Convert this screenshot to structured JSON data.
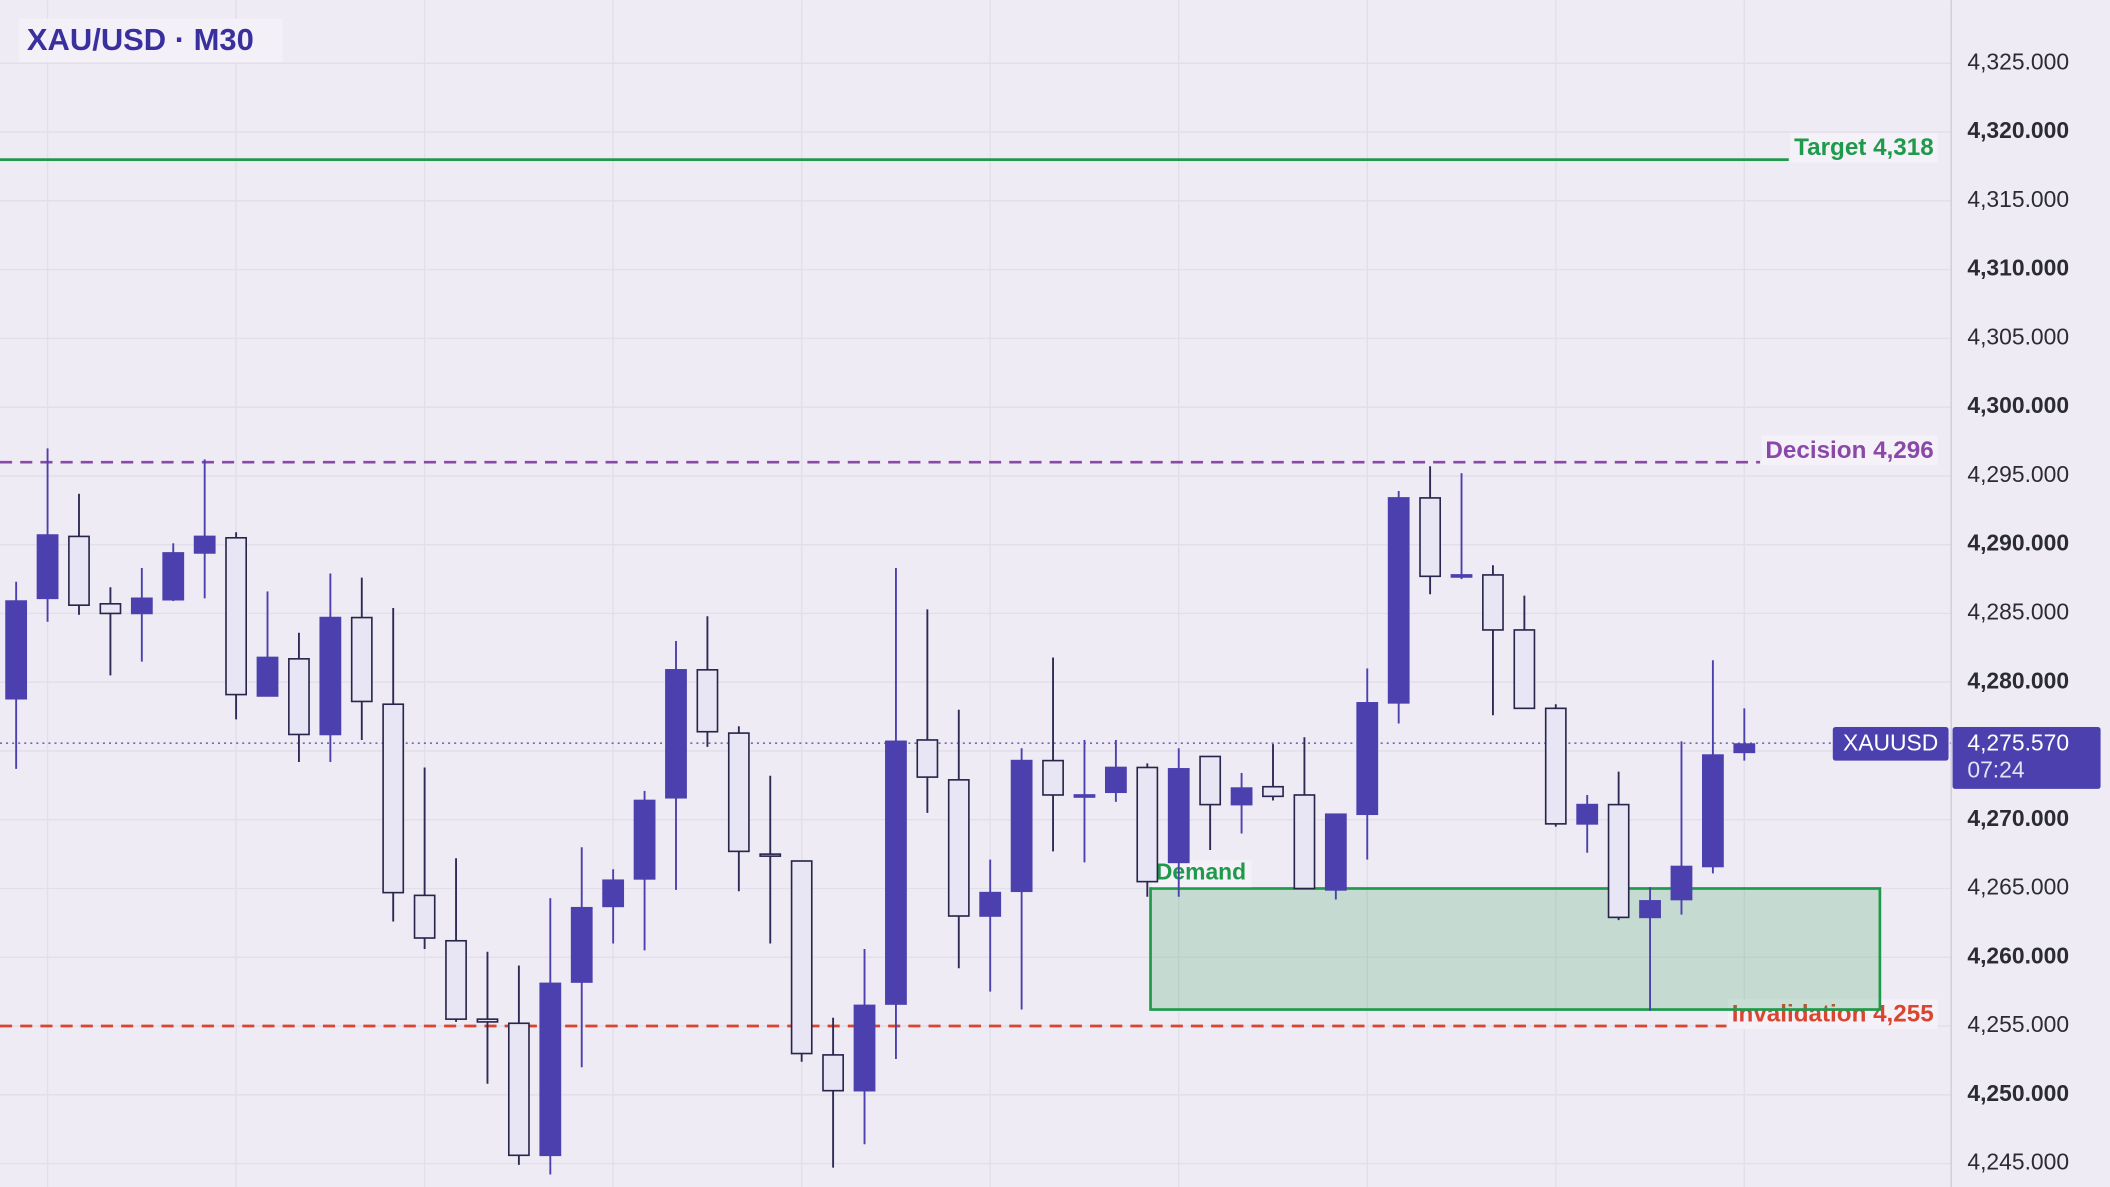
{
  "chart_data": {
    "type": "candlestick",
    "title": "XAU/USD · M30",
    "up_color": "#4b40ae",
    "down_color": "#e8e5f4",
    "open": [
      4278.8,
      4286.1,
      4290.6,
      4285.7,
      4285.0,
      4286.0,
      4289.4,
      4290.5,
      4279.0,
      4281.7,
      4276.2,
      4284.7,
      4278.4,
      4264.5,
      4261.2,
      4255.5,
      4255.2,
      4245.6,
      4258.2,
      4263.7,
      4265.7,
      4271.6,
      4280.9,
      4276.3,
      4267.5,
      4267.0,
      4252.9,
      4250.3,
      4256.6,
      4275.8,
      4272.9,
      4263.0,
      4264.8,
      4274.3,
      4271.7,
      4272.0,
      4273.8,
      4266.9,
      4274.6,
      4271.1,
      4272.4,
      4271.8,
      4264.9,
      4270.4,
      4278.5,
      4293.4,
      4287.7,
      4287.8,
      4283.8,
      4278.1,
      4269.7,
      4271.1,
      4262.9,
      4264.2,
      4266.6,
      4274.9
    ],
    "high": [
      4287.3,
      4297.0,
      4293.7,
      4286.9,
      4288.3,
      4290.1,
      4296.2,
      4290.9,
      4286.6,
      4283.6,
      4287.9,
      4287.6,
      4285.4,
      4273.8,
      4267.2,
      4260.4,
      4259.4,
      4264.3,
      4268.0,
      4266.4,
      4272.1,
      4283.0,
      4284.8,
      4276.8,
      4273.2,
      4267.0,
      4255.6,
      4260.6,
      4288.3,
      4285.3,
      4278.0,
      4267.1,
      4275.2,
      4281.8,
      4275.8,
      4275.8,
      4274.1,
      4275.2,
      4274.6,
      4273.4,
      4275.5,
      4276.0,
      4270.4,
      4281.0,
      4293.9,
      4295.7,
      4295.2,
      4288.5,
      4286.3,
      4278.4,
      4271.8,
      4273.5,
      4265.1,
      4275.7,
      4281.6,
      4278.1
    ],
    "low": [
      4273.7,
      4284.4,
      4284.9,
      4280.5,
      4281.5,
      4285.9,
      4286.1,
      4277.3,
      4279.0,
      4274.2,
      4274.2,
      4275.8,
      4262.6,
      4260.6,
      4255.3,
      4250.8,
      4244.9,
      4244.2,
      4252.0,
      4261.0,
      4260.5,
      4264.9,
      4275.3,
      4264.8,
      4261.0,
      4252.4,
      4244.7,
      4246.4,
      4252.6,
      4270.5,
      4259.2,
      4257.5,
      4256.2,
      4267.7,
      4266.9,
      4271.3,
      4264.4,
      4264.4,
      4267.8,
      4269.0,
      4271.4,
      4265.0,
      4264.2,
      4267.1,
      4277.0,
      4286.4,
      4287.5,
      4277.6,
      4278.1,
      4269.5,
      4267.6,
      4262.7,
      4256.1,
      4263.1,
      4266.1,
      4274.3
    ],
    "close": [
      4285.9,
      4290.7,
      4285.6,
      4285.0,
      4286.1,
      4289.4,
      4290.6,
      4279.1,
      4281.8,
      4276.2,
      4284.7,
      4278.6,
      4264.7,
      4261.4,
      4255.5,
      4255.3,
      4245.6,
      4258.1,
      4263.6,
      4265.6,
      4271.4,
      4280.9,
      4276.4,
      4267.7,
      4267.5,
      4253.0,
      4250.3,
      4256.5,
      4275.7,
      4273.1,
      4263.0,
      4264.7,
      4274.3,
      4271.8,
      4271.8,
      4273.8,
      4265.5,
      4273.7,
      4271.1,
      4272.3,
      4271.7,
      4265.0,
      4270.4,
      4278.5,
      4293.4,
      4287.7,
      4287.8,
      4283.8,
      4278.1,
      4269.7,
      4271.1,
      4262.9,
      4264.1,
      4266.6,
      4274.7,
      4275.5
    ],
    "ylim": [
      4243.3,
      4329.6
    ],
    "yticks": [
      {
        "value": 4245,
        "label": "4,245.000"
      },
      {
        "value": 4250,
        "label": "4,250.000"
      },
      {
        "value": 4255,
        "label": "4,255.000"
      },
      {
        "value": 4260,
        "label": "4,260.000"
      },
      {
        "value": 4265,
        "label": "4,265.000"
      },
      {
        "value": 4270,
        "label": "4,270.000"
      },
      {
        "value": 4275,
        "label": "4,275.000"
      },
      {
        "value": 4280,
        "label": "4,280.000"
      },
      {
        "value": 4285,
        "label": "4,285.000"
      },
      {
        "value": 4290,
        "label": "4,290.000"
      },
      {
        "value": 4295,
        "label": "4,295.000"
      },
      {
        "value": 4300,
        "label": "4,300.000"
      },
      {
        "value": 4305,
        "label": "4,305.000"
      },
      {
        "value": 4310,
        "label": "4,310.000"
      },
      {
        "value": 4315,
        "label": "4,315.000"
      },
      {
        "value": 4320,
        "label": "4,320.000"
      },
      {
        "value": 4325,
        "label": "4,325.000"
      }
    ],
    "grid": true,
    "levels": [
      {
        "label": "Target 4,318",
        "value": 4318,
        "color": "#1e9a4a",
        "style": "solid"
      },
      {
        "label": "Decision 4,296",
        "value": 4296,
        "color": "#8a48a8",
        "style": "dashed"
      },
      {
        "label": "Invalidation 4,255",
        "value": 4255,
        "color": "#d9452f",
        "style": "dashed"
      }
    ],
    "zone": {
      "label": "Demand",
      "low": 4256.2,
      "high": 4265.0,
      "color": "#1e9a4a"
    },
    "last_price": {
      "symbol": "XAUUSD",
      "value": 4275.57,
      "label": "4,275.570",
      "countdown": "07:24"
    }
  }
}
